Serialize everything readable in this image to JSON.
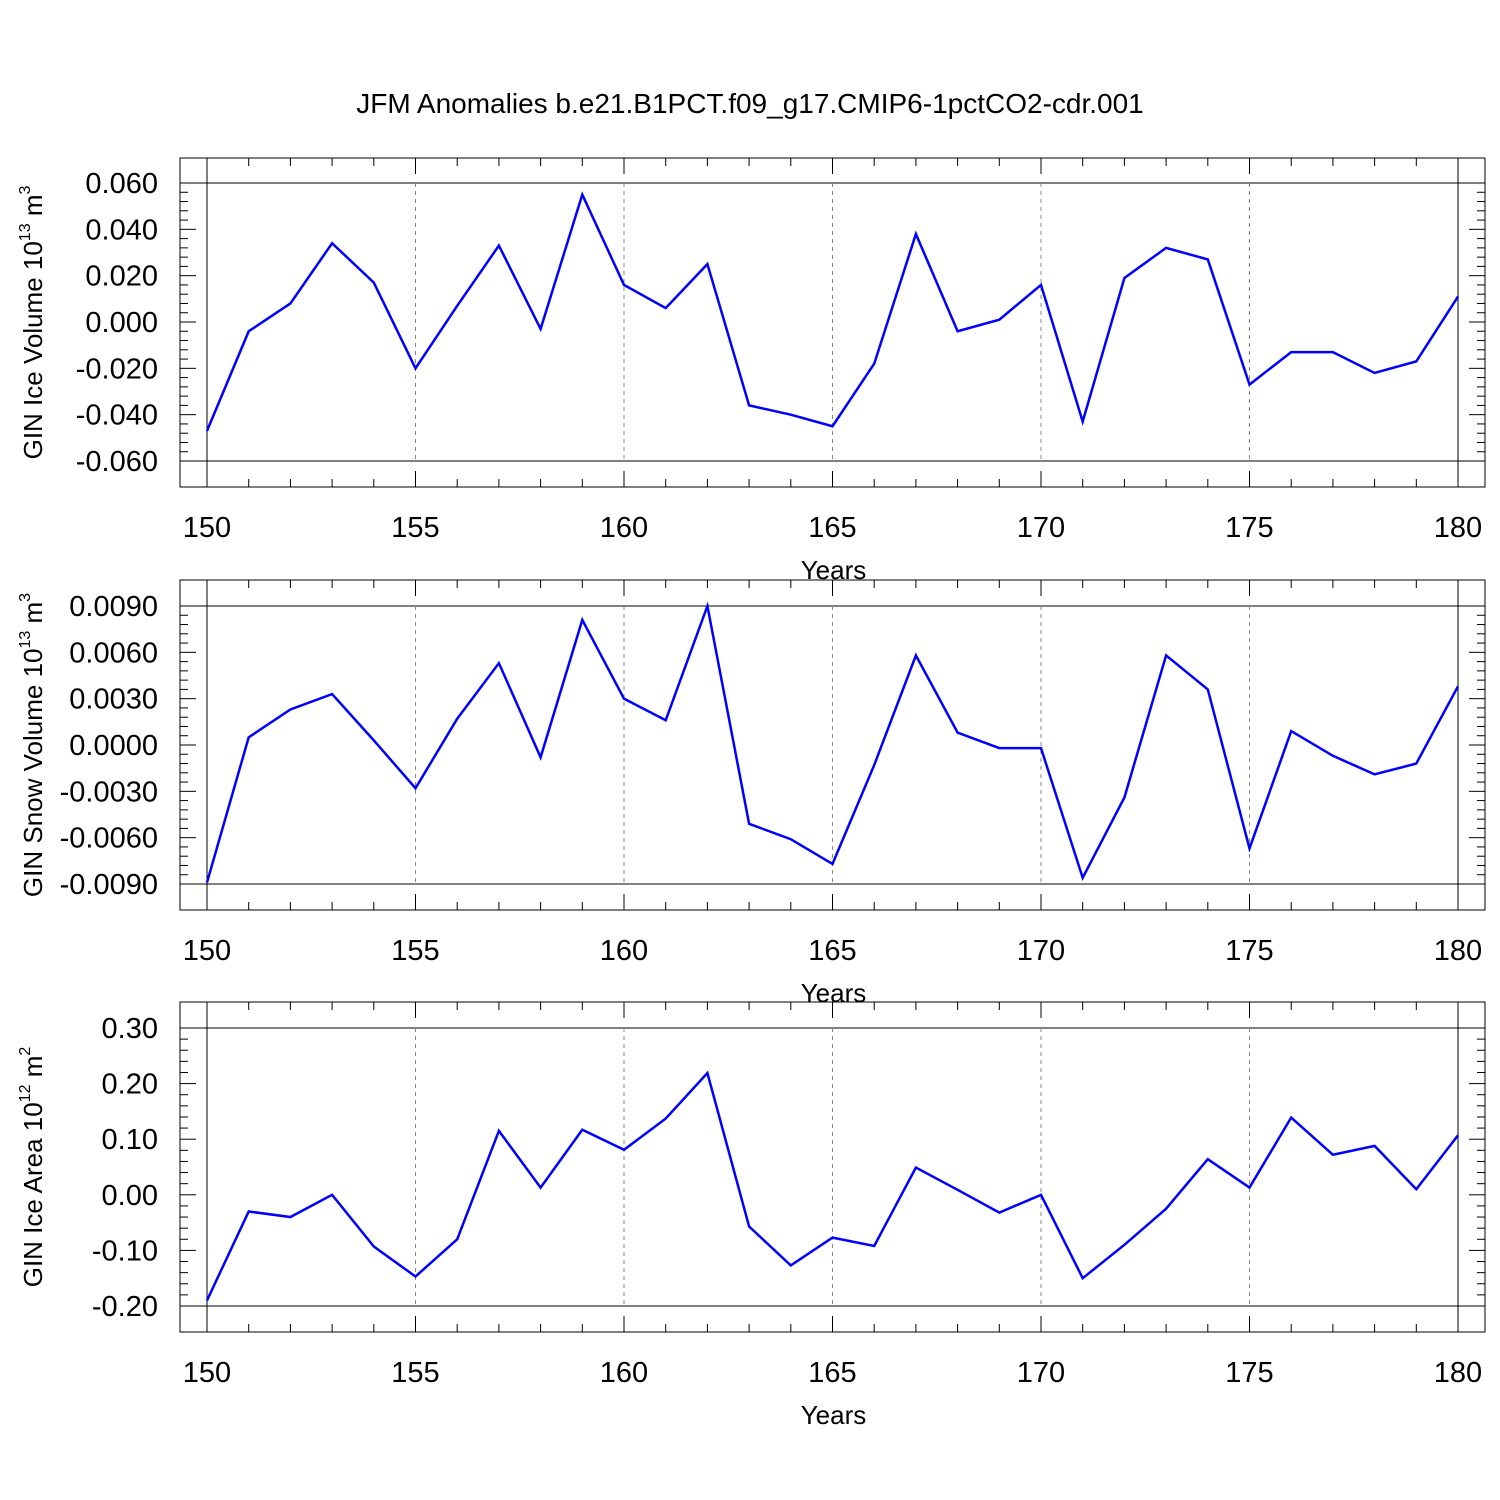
{
  "title": "JFM Anomalies b.e21.B1PCT.f09_g17.CMIP6-1pctCO2-cdr.001",
  "colors": {
    "series": "#0000ff",
    "axis": "#000000",
    "grid": "#888888"
  },
  "chart_data": [
    {
      "type": "line",
      "xlabel": "Years",
      "ylabel": {
        "text": "GIN Ice Volume 10",
        "sup": "13",
        "unit": " m",
        "unit_sup": "3"
      },
      "xlim": [
        150,
        180
      ],
      "ylim": [
        -0.06,
        0.06
      ],
      "xticks": [
        150,
        155,
        160,
        165,
        170,
        175,
        180
      ],
      "yticks": [
        -0.06,
        -0.04,
        -0.02,
        0.0,
        0.02,
        0.04,
        0.06
      ],
      "ytick_labels": [
        "-0.060",
        "-0.040",
        "-0.020",
        "0.000",
        "0.020",
        "0.040",
        "0.060"
      ],
      "grid": "vertical dashed at major x ticks",
      "x": [
        150,
        151,
        152,
        153,
        154,
        155,
        156,
        157,
        158,
        159,
        160,
        161,
        162,
        163,
        164,
        165,
        166,
        167,
        168,
        169,
        170,
        171,
        172,
        173,
        174,
        175,
        176,
        177,
        178,
        179,
        180
      ],
      "series": [
        {
          "values": [
            -0.047,
            -0.004,
            0.008,
            0.034,
            0.017,
            -0.02,
            0.007,
            0.033,
            -0.003,
            0.055,
            0.016,
            0.006,
            0.025,
            -0.036,
            -0.04,
            -0.045,
            -0.018,
            0.038,
            -0.004,
            0.001,
            0.016,
            -0.043,
            0.019,
            0.032,
            0.027,
            -0.027,
            -0.013,
            -0.013,
            -0.022,
            -0.017,
            0.011
          ]
        }
      ]
    },
    {
      "type": "line",
      "xlabel": "Years",
      "ylabel": {
        "text": "GIN Snow Volume 10",
        "sup": "13",
        "unit": " m",
        "unit_sup": "3"
      },
      "xlim": [
        150,
        180
      ],
      "ylim": [
        -0.009,
        0.009
      ],
      "xticks": [
        150,
        155,
        160,
        165,
        170,
        175,
        180
      ],
      "yticks": [
        -0.009,
        -0.006,
        -0.003,
        0.0,
        0.003,
        0.006,
        0.009
      ],
      "ytick_labels": [
        "-0.0090",
        "-0.0060",
        "-0.0030",
        "0.0000",
        "0.0030",
        "0.0060",
        "0.0090"
      ],
      "grid": "vertical dashed at major x ticks",
      "x": [
        150,
        151,
        152,
        153,
        154,
        155,
        156,
        157,
        158,
        159,
        160,
        161,
        162,
        163,
        164,
        165,
        166,
        167,
        168,
        169,
        170,
        171,
        172,
        173,
        174,
        175,
        176,
        177,
        178,
        179,
        180
      ],
      "series": [
        {
          "values": [
            -0.0089,
            0.0005,
            0.0023,
            0.0033,
            0.0003,
            -0.0028,
            0.0017,
            0.0053,
            -0.0008,
            0.0081,
            0.003,
            0.0016,
            0.009,
            -0.0051,
            -0.0061,
            -0.0077,
            -0.0013,
            0.0058,
            0.0008,
            -0.0002,
            -0.0002,
            -0.0086,
            -0.0034,
            0.0058,
            0.0036,
            -0.0067,
            0.0009,
            -0.0007,
            -0.0019,
            -0.0012,
            0.0038
          ]
        }
      ]
    },
    {
      "type": "line",
      "xlabel": "Years",
      "ylabel": {
        "text": "GIN Ice Area 10",
        "sup": "12",
        "unit": " m",
        "unit_sup": "2"
      },
      "xlim": [
        150,
        180
      ],
      "ylim": [
        -0.2,
        0.3
      ],
      "xticks": [
        150,
        155,
        160,
        165,
        170,
        175,
        180
      ],
      "yticks": [
        -0.2,
        -0.1,
        0.0,
        0.1,
        0.2,
        0.3
      ],
      "ytick_labels": [
        "-0.20",
        "-0.10",
        "0.00",
        "0.10",
        "0.20",
        "0.30"
      ],
      "grid": "vertical dashed at major x ticks",
      "x": [
        150,
        151,
        152,
        153,
        154,
        155,
        156,
        157,
        158,
        159,
        160,
        161,
        162,
        163,
        164,
        165,
        166,
        167,
        168,
        169,
        170,
        171,
        172,
        173,
        174,
        175,
        176,
        177,
        178,
        179,
        180
      ],
      "series": [
        {
          "values": [
            -0.19,
            -0.03,
            -0.04,
            0.0,
            -0.093,
            -0.147,
            -0.08,
            0.115,
            0.013,
            0.117,
            0.081,
            0.137,
            0.219,
            -0.057,
            -0.127,
            -0.077,
            -0.092,
            0.049,
            0.009,
            -0.032,
            0.0,
            -0.15,
            -0.09,
            -0.025,
            0.064,
            0.013,
            0.139,
            0.072,
            0.088,
            0.01,
            0.107
          ]
        }
      ]
    }
  ]
}
